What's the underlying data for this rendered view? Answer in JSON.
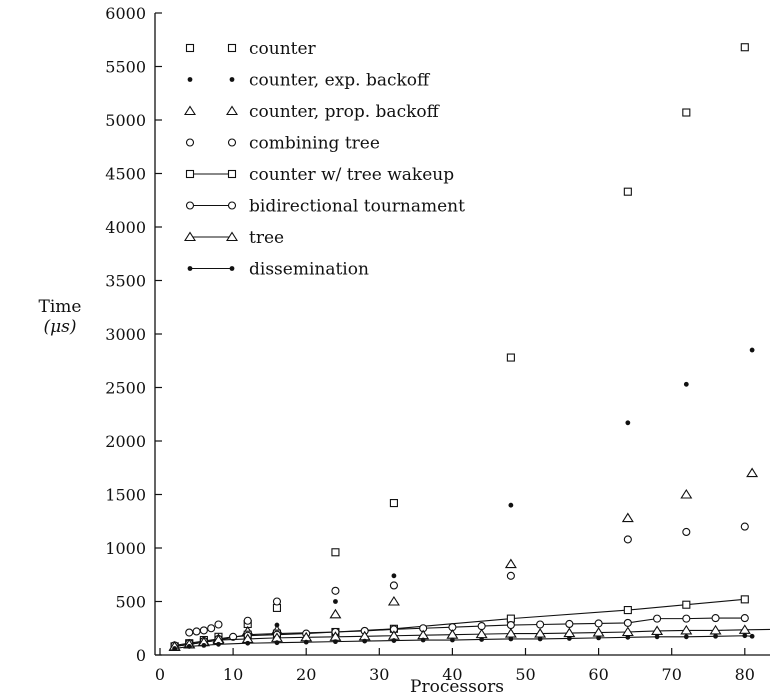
{
  "chart_data": {
    "type": "scatter",
    "title": "",
    "xlabel": "Processors",
    "ylabel": "Time",
    "ylabel_unit": "(μs)",
    "xlim": [
      0,
      84
    ],
    "ylim": [
      0,
      6000
    ],
    "xticks": [
      0,
      10,
      20,
      30,
      40,
      50,
      60,
      70,
      80
    ],
    "yticks": [
      0,
      500,
      1000,
      1500,
      2000,
      2500,
      3000,
      3500,
      4000,
      4500,
      5000,
      5500,
      6000
    ],
    "grid": false,
    "legend_position": "top-left",
    "series": [
      {
        "name": "counter",
        "marker": "square-open",
        "line": false,
        "points": [
          [
            2,
            80
          ],
          [
            4,
            110
          ],
          [
            6,
            140
          ],
          [
            8,
            170
          ],
          [
            12,
            290
          ],
          [
            16,
            440
          ],
          [
            24,
            960
          ],
          [
            32,
            1420
          ],
          [
            48,
            2780
          ],
          [
            64,
            4330
          ],
          [
            72,
            5070
          ],
          [
            80,
            5680
          ]
        ]
      },
      {
        "name": "counter, exp. backoff",
        "marker": "dot",
        "line": false,
        "points": [
          [
            2,
            70
          ],
          [
            4,
            95
          ],
          [
            6,
            115
          ],
          [
            8,
            140
          ],
          [
            12,
            210
          ],
          [
            16,
            280
          ],
          [
            24,
            500
          ],
          [
            32,
            740
          ],
          [
            48,
            1400
          ],
          [
            64,
            2170
          ],
          [
            72,
            2530
          ],
          [
            81,
            2850
          ]
        ]
      },
      {
        "name": "counter, prop. backoff",
        "marker": "triangle-open",
        "line": false,
        "points": [
          [
            2,
            75
          ],
          [
            4,
            100
          ],
          [
            6,
            125
          ],
          [
            8,
            150
          ],
          [
            12,
            220
          ],
          [
            16,
            230
          ],
          [
            24,
            380
          ],
          [
            32,
            500
          ],
          [
            48,
            850
          ],
          [
            64,
            1280
          ],
          [
            72,
            1500
          ],
          [
            81,
            1700
          ]
        ]
      },
      {
        "name": "combining tree",
        "marker": "circle-open",
        "line": false,
        "points": [
          [
            4,
            210
          ],
          [
            5,
            220
          ],
          [
            6,
            230
          ],
          [
            7,
            250
          ],
          [
            8,
            285
          ],
          [
            12,
            320
          ],
          [
            16,
            500
          ],
          [
            24,
            600
          ],
          [
            32,
            650
          ],
          [
            48,
            740
          ],
          [
            64,
            1080
          ],
          [
            72,
            1150
          ],
          [
            80,
            1200
          ]
        ]
      },
      {
        "name": "counter w/ tree wakeup",
        "marker": "square-open",
        "line": true,
        "points": [
          [
            2,
            80
          ],
          [
            4,
            100
          ],
          [
            6,
            120
          ],
          [
            8,
            140
          ],
          [
            12,
            190
          ],
          [
            16,
            200
          ],
          [
            24,
            215
          ],
          [
            32,
            245
          ],
          [
            48,
            340
          ],
          [
            64,
            420
          ],
          [
            72,
            470
          ],
          [
            80,
            520
          ]
        ]
      },
      {
        "name": "bidirectional tournament",
        "marker": "circle-open",
        "line": true,
        "points": [
          [
            2,
            90
          ],
          [
            4,
            110
          ],
          [
            6,
            130
          ],
          [
            8,
            150
          ],
          [
            10,
            170
          ],
          [
            12,
            180
          ],
          [
            16,
            190
          ],
          [
            20,
            200
          ],
          [
            24,
            215
          ],
          [
            28,
            225
          ],
          [
            32,
            240
          ],
          [
            36,
            250
          ],
          [
            40,
            260
          ],
          [
            44,
            270
          ],
          [
            48,
            280
          ],
          [
            52,
            285
          ],
          [
            56,
            290
          ],
          [
            60,
            295
          ],
          [
            64,
            300
          ],
          [
            68,
            340
          ],
          [
            72,
            340
          ],
          [
            76,
            345
          ],
          [
            80,
            345
          ]
        ]
      },
      {
        "name": "tree",
        "marker": "triangle-open",
        "line": true,
        "points": [
          [
            2,
            80
          ],
          [
            4,
            100
          ],
          [
            6,
            120
          ],
          [
            8,
            140
          ],
          [
            12,
            150
          ],
          [
            16,
            160
          ],
          [
            20,
            165
          ],
          [
            24,
            170
          ],
          [
            28,
            175
          ],
          [
            32,
            180
          ],
          [
            36,
            185
          ],
          [
            40,
            190
          ],
          [
            44,
            195
          ],
          [
            48,
            200
          ],
          [
            52,
            200
          ],
          [
            56,
            205
          ],
          [
            60,
            210
          ],
          [
            64,
            215
          ],
          [
            68,
            225
          ],
          [
            72,
            230
          ],
          [
            76,
            230
          ],
          [
            80,
            235
          ],
          [
            84,
            240
          ]
        ]
      },
      {
        "name": "dissemination",
        "marker": "dot",
        "line": true,
        "points": [
          [
            2,
            60
          ],
          [
            4,
            80
          ],
          [
            6,
            90
          ],
          [
            8,
            100
          ],
          [
            12,
            110
          ],
          [
            16,
            115
          ],
          [
            20,
            120
          ],
          [
            24,
            125
          ],
          [
            28,
            130
          ],
          [
            32,
            135
          ],
          [
            36,
            140
          ],
          [
            40,
            140
          ],
          [
            44,
            145
          ],
          [
            48,
            150
          ],
          [
            52,
            150
          ],
          [
            56,
            155
          ],
          [
            60,
            160
          ],
          [
            64,
            165
          ],
          [
            68,
            170
          ],
          [
            72,
            170
          ],
          [
            76,
            175
          ],
          [
            80,
            180
          ],
          [
            81,
            175
          ]
        ]
      }
    ]
  }
}
